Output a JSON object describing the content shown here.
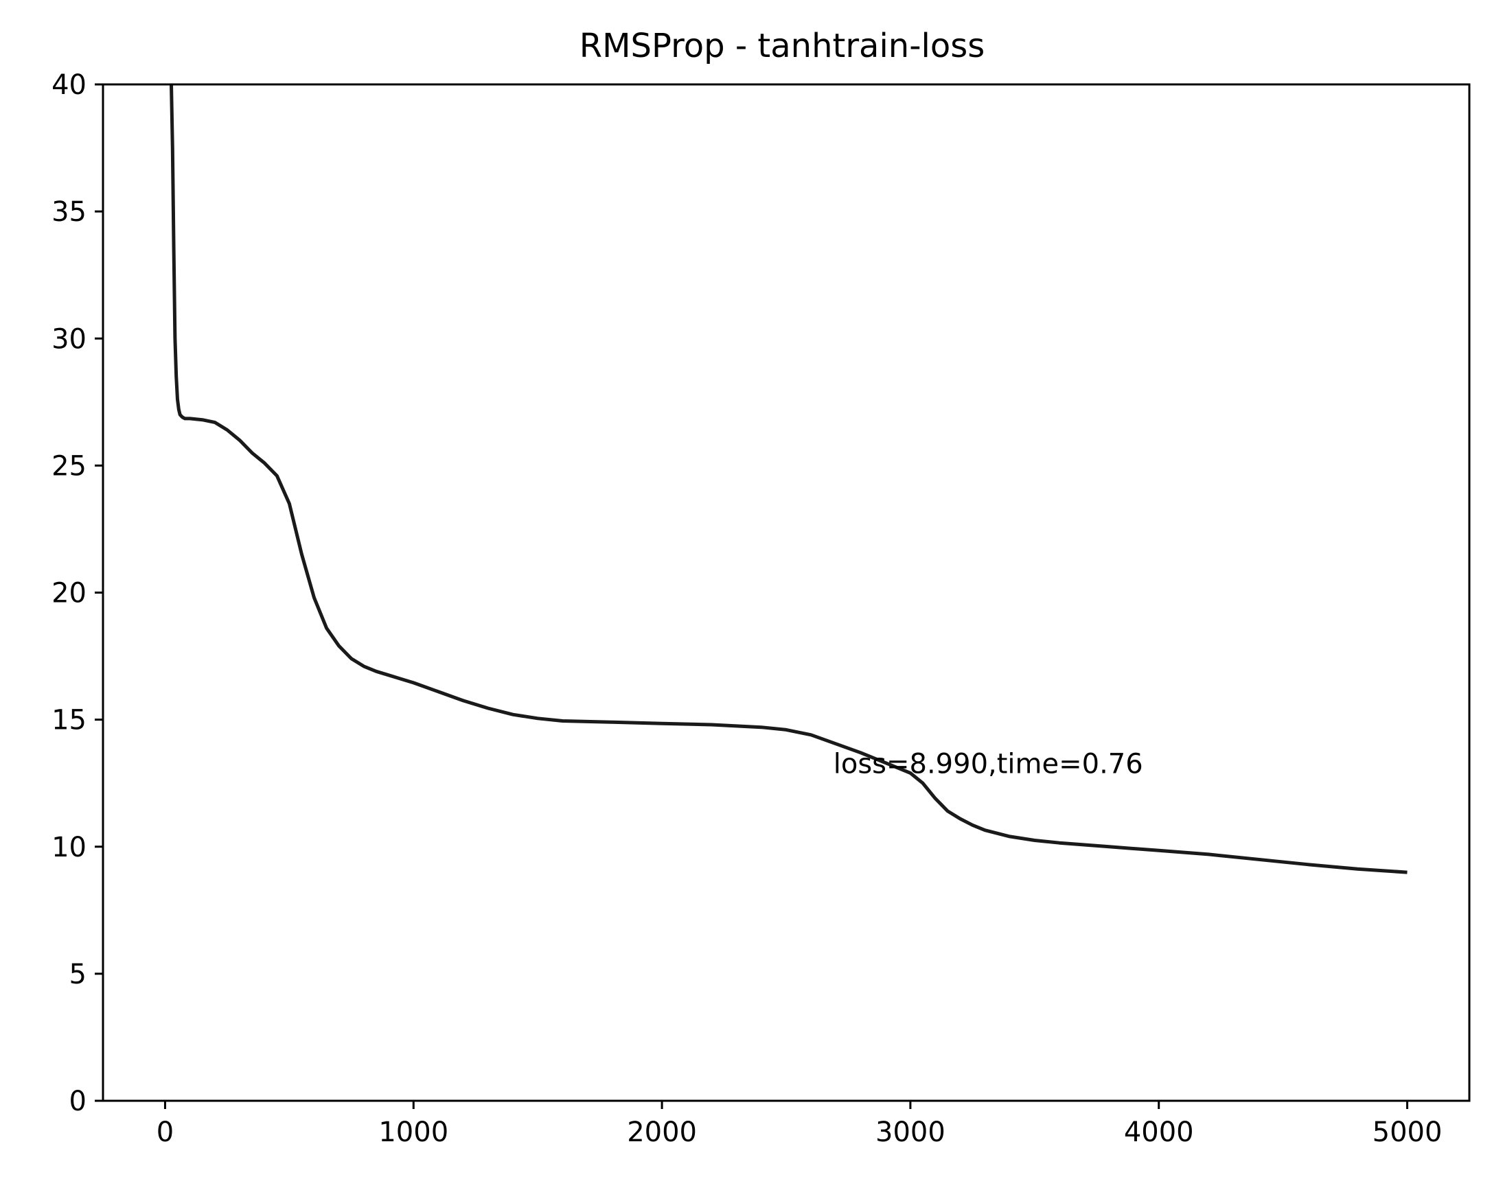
{
  "chart_data": {
    "type": "line",
    "title": "RMSProp - tanhtrain-loss",
    "xlabel": "",
    "ylabel": "",
    "xlim": [
      -250,
      5250
    ],
    "ylim": [
      0,
      40
    ],
    "xticks": [
      0,
      1000,
      2000,
      3000,
      4000,
      5000
    ],
    "yticks": [
      0,
      5,
      10,
      15,
      20,
      25,
      30,
      35,
      40
    ],
    "xtick_labels": [
      "0",
      "1000",
      "2000",
      "3000",
      "4000",
      "5000"
    ],
    "ytick_labels": [
      "0",
      "5",
      "10",
      "15",
      "20",
      "25",
      "30",
      "35",
      "40"
    ],
    "grid": false,
    "line_color": "#1a1a1a",
    "series": [
      {
        "x": [
          25,
          30,
          35,
          40,
          45,
          50,
          55,
          60,
          65,
          70,
          80,
          100,
          150,
          200,
          250,
          300,
          350,
          400,
          450,
          500,
          550,
          600,
          650,
          700,
          750,
          800,
          850,
          900,
          950,
          1000,
          1100,
          1200,
          1300,
          1400,
          1500,
          1600,
          1800,
          2000,
          2200,
          2400,
          2500,
          2600,
          2700,
          2800,
          2900,
          3000,
          3050,
          3100,
          3150,
          3200,
          3250,
          3300,
          3400,
          3500,
          3600,
          3800,
          4000,
          4200,
          4400,
          4600,
          4800,
          5000
        ],
        "y": [
          40.0,
          37.5,
          33.5,
          30.0,
          28.5,
          27.6,
          27.2,
          27.0,
          26.95,
          26.9,
          26.85,
          26.85,
          26.8,
          26.7,
          26.4,
          26.0,
          25.5,
          25.1,
          24.6,
          23.5,
          21.5,
          19.8,
          18.6,
          17.9,
          17.4,
          17.1,
          16.9,
          16.75,
          16.6,
          16.45,
          16.1,
          15.75,
          15.45,
          15.2,
          15.05,
          14.95,
          14.9,
          14.85,
          14.8,
          14.7,
          14.6,
          14.4,
          14.05,
          13.7,
          13.3,
          12.9,
          12.5,
          11.9,
          11.4,
          11.1,
          10.85,
          10.65,
          10.4,
          10.25,
          10.15,
          10.0,
          9.85,
          9.7,
          9.5,
          9.3,
          9.12,
          8.99
        ]
      }
    ],
    "annotations": [
      {
        "text": "loss=8.990,time=0.76",
        "x": 2690,
        "y": 12.9
      }
    ]
  }
}
